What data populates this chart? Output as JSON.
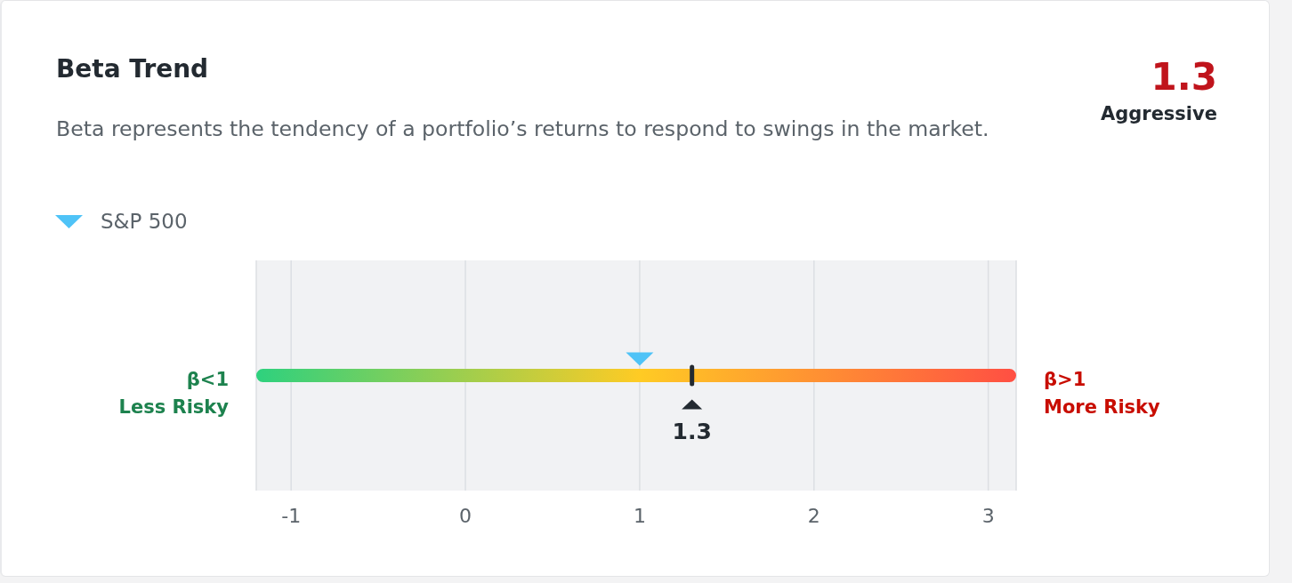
{
  "chart_data": {
    "type": "scatter",
    "orientation": "horizontal",
    "title": "Beta Trend",
    "subtitle": "Beta represents the tendency of a portfolio’s returns to respond to swings in the market.",
    "annotations": [
      "1.3",
      "Aggressive"
    ],
    "categories": [
      null
    ],
    "series": [
      {
        "name": "S&P 500",
        "color": "#4fc3f7",
        "values": [
          1
        ]
      },
      {
        "color": "#232a31",
        "values": [
          1.3
        ],
        "value_labels": [
          "1.3"
        ]
      }
    ],
    "xlim": [
      -1.2,
      3.16
    ],
    "xticks": [
      -1,
      0,
      1,
      2,
      3
    ],
    "bands": [
      {
        "axis": "x",
        "from": -1.2,
        "to": 1,
        "color": "#2ed17e",
        "label": "β<1\nLess Risky"
      },
      {
        "axis": "x",
        "from": 1,
        "to": 3.16,
        "color": "#ff4f43",
        "label": "β>1\nMore Risky"
      }
    ],
    "grid": "x",
    "legend": "top left",
    "marker": "triangle",
    "tick_labels": "x"
  }
}
